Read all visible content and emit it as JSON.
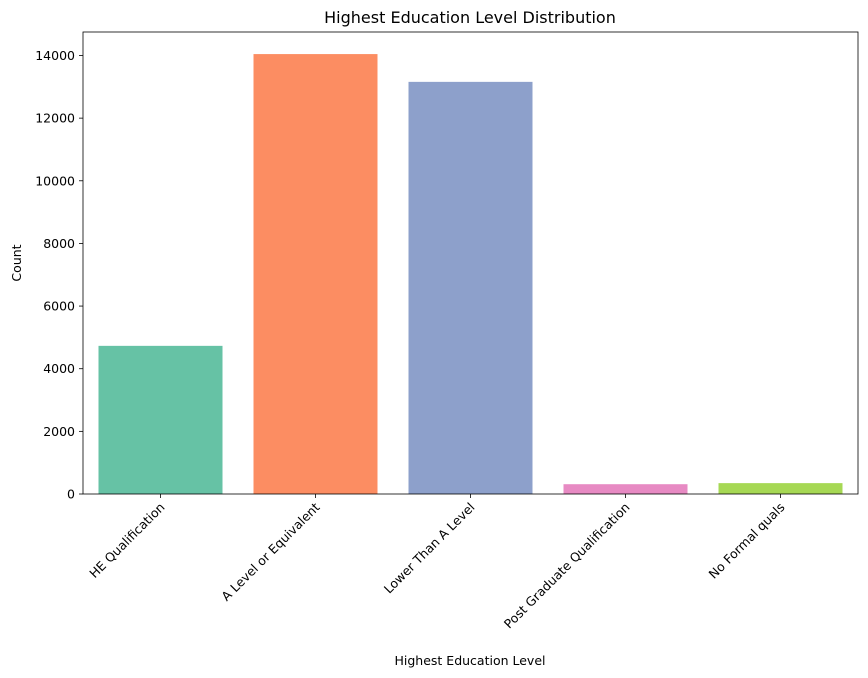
{
  "chart_data": {
    "type": "bar",
    "title": "Highest Education Level Distribution",
    "xlabel": "Highest Education Level",
    "ylabel": "Count",
    "categories": [
      "HE Qualification",
      "A Level or Equivalent",
      "Lower Than A Level",
      "Post Graduate Qualification",
      "No Formal quals"
    ],
    "values": [
      4730,
      14045,
      13158,
      313,
      347
    ],
    "colors": [
      "#66c2a5",
      "#fc8d62",
      "#8da0cb",
      "#e78ac3",
      "#a6d854"
    ],
    "yticks": [
      0,
      2000,
      4000,
      6000,
      8000,
      10000,
      12000,
      14000
    ],
    "ylim": [
      0,
      14750
    ],
    "grid": false,
    "legend": "none",
    "xtick_rotation": 45
  }
}
